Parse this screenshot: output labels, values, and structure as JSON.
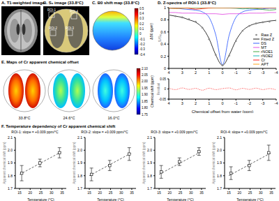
{
  "panels": {
    "A": {
      "title": "A. T1-weighted image"
    },
    "B": {
      "title": "B. S₀ image (33.8°C)",
      "rois": [
        "ROI-1",
        "ROI-2",
        "ROI-3",
        "ROI-4"
      ]
    },
    "C": {
      "title": "C. B0 shift map (33.8°C)",
      "colorbar": {
        "label": "ΔB0 (ppm)",
        "range": [
          -0.4,
          0.5
        ],
        "ticks": [
          0.5,
          0.4,
          0.3,
          0.2,
          0.1,
          0,
          -0.1,
          -0.2,
          -0.3,
          -0.4
        ]
      }
    },
    "E": {
      "title": "E. Maps of Cr apparent chemical offset",
      "maps": [
        "33.8°C",
        "24.6°C",
        "16.0°C"
      ],
      "colorbar": {
        "label": "Chemical shift (ppm)",
        "range": [
          1.75,
          2.1
        ],
        "ticks": [
          {
            "value": 2.1,
            "label": "2.10"
          },
          {
            "value": 2.05,
            "label": "2.05"
          },
          {
            "value": 2,
            "label": "2.00"
          },
          {
            "value": 1.95,
            "label": "1.95"
          },
          {
            "value": 1.9,
            "label": "1.90"
          },
          {
            "value": 1.85,
            "label": "1.85"
          },
          {
            "value": 1.8,
            "label": "1.80"
          },
          {
            "value": 1.75,
            "label": "1.75"
          }
        ]
      }
    },
    "F": {
      "title": "F. Temperature dependency of Cr apparent chemical shift"
    }
  },
  "chart_data": [
    {
      "type": "line",
      "title": "D. Z-spectra of ROI-1 (33.8°C)",
      "x": [
        4,
        3.5,
        3,
        2.5,
        2,
        1.5,
        1,
        0.5,
        0,
        -0.5,
        -1,
        -1.5,
        -2,
        -2.5,
        -3,
        -3.5,
        -4
      ],
      "xlim": [
        4,
        -4
      ],
      "xticks": [
        4,
        3,
        2,
        1,
        0,
        -1,
        -2,
        -3,
        -4
      ],
      "ylim": [
        0,
        1
      ],
      "yticks": [
        0,
        0.2,
        0.4,
        0.6,
        0.8,
        1
      ],
      "y_label": "S/S₀",
      "legend": "lower right",
      "series": [
        {
          "name": "Raw Z",
          "color": "#888888",
          "marker": "circle",
          "line_style": "none",
          "values": [
            0.88,
            0.86,
            0.84,
            0.81,
            0.77,
            0.67,
            0.48,
            0.22,
            0.05,
            0.21,
            0.45,
            0.62,
            0.7,
            0.74,
            0.76,
            0.77,
            0.79
          ]
        },
        {
          "name": "Fitted Z",
          "color": "#000000",
          "line_style": "solid",
          "values": [
            0.88,
            0.86,
            0.84,
            0.8,
            0.76,
            0.67,
            0.49,
            0.22,
            0.05,
            0.22,
            0.46,
            0.62,
            0.7,
            0.74,
            0.76,
            0.78,
            0.79
          ]
        },
        {
          "name": "DS",
          "color": "#1f4fff",
          "line_style": "solid",
          "values": [
            0.99,
            0.99,
            0.98,
            0.97,
            0.96,
            0.93,
            0.84,
            0.55,
            0.06,
            0.55,
            0.84,
            0.93,
            0.96,
            0.97,
            0.98,
            0.99,
            0.99
          ]
        },
        {
          "name": "MT",
          "color": "#e040e0",
          "line_style": "solid",
          "values": [
            0.92,
            0.92,
            0.91,
            0.91,
            0.91,
            0.9,
            0.9,
            0.9,
            0.89,
            0.9,
            0.9,
            0.9,
            0.91,
            0.91,
            0.91,
            0.92,
            0.92
          ]
        },
        {
          "name": "rNOE1",
          "color": "#2ca02c",
          "line_style": "solid",
          "values": [
            1,
            1,
            1,
            1,
            1,
            1,
            1,
            1,
            1,
            1,
            1,
            1,
            0.995,
            0.985,
            0.97,
            0.96,
            0.97
          ]
        },
        {
          "name": "rNOE2",
          "color": "#00b0b0",
          "line_style": "solid",
          "values": [
            1,
            1,
            1,
            1,
            1,
            1,
            1,
            1,
            1,
            0.995,
            0.99,
            0.98,
            0.985,
            0.995,
            1,
            1,
            1
          ]
        },
        {
          "name": "Cr",
          "color": "#ff0000",
          "line_style": "solid",
          "values": [
            1,
            1,
            1,
            0.99,
            0.975,
            0.985,
            0.995,
            1,
            1,
            1,
            1,
            1,
            1,
            1,
            1,
            1,
            1
          ]
        },
        {
          "name": "APT",
          "color": "#ff9900",
          "line_style": "solid",
          "values": [
            0.995,
            0.985,
            0.99,
            1,
            1,
            1,
            1,
            1,
            1,
            1,
            1,
            1,
            1,
            1,
            1,
            1,
            1
          ]
        }
      ]
    },
    {
      "type": "line",
      "x": [
        4,
        3.5,
        3,
        2.5,
        2,
        1.5,
        1,
        0.5,
        0,
        -0.5,
        -1,
        -1.5,
        -2,
        -2.5,
        -3,
        -3.5,
        -4
      ],
      "xlim": [
        4,
        -4
      ],
      "xticks": [
        4,
        3,
        2,
        1,
        0,
        -1,
        -2,
        -3,
        -4
      ],
      "x_label": "Chemical offset from water (ppm)",
      "y_label": "Residual",
      "ylim": [
        -0.05,
        0.05
      ],
      "yticks": [
        -0.05,
        0,
        0.05
      ],
      "color": "#ff0000",
      "line_style": "dotted",
      "values": [
        0.004,
        -0.003,
        0.005,
        -0.002,
        0.003,
        -0.006,
        0.004,
        -0.003,
        0.002,
        0.005,
        -0.004,
        0.003,
        -0.002,
        0.004,
        -0.003,
        0.002,
        -0.004
      ]
    },
    {
      "type": "scatter",
      "title": "ROI-1: slope = +0.009 ppm/°C",
      "x": [
        16.0,
        24.6,
        33.8
      ],
      "values": [
        1.82,
        1.9,
        1.98
      ],
      "errors": [
        0.06,
        0.03,
        0.04
      ],
      "color": "#000000",
      "marker": "square",
      "fit": {
        "x": [
          15,
          35
        ],
        "values": [
          1.81,
          1.99
        ],
        "line_style": "dashed"
      },
      "xlim": [
        13,
        37
      ],
      "xticks": [
        15,
        20,
        25,
        30,
        35
      ],
      "ylim": [
        1.7,
        2.1
      ],
      "yticks": [
        1.7,
        1.8,
        1.9,
        {
          "value": 2,
          "label": "2.0"
        },
        2.1
      ],
      "x_label": "Temperature (°C)",
      "y_label": "Apparent chemical shift (ppm)"
    },
    {
      "type": "scatter",
      "title": "ROI-2: slope = +0.009 ppm/°C",
      "x": [
        16.0,
        24.6,
        33.8
      ],
      "values": [
        1.81,
        1.88,
        1.97
      ],
      "errors": [
        0.05,
        0.04,
        0.05
      ],
      "color": "#000000",
      "marker": "square",
      "fit": {
        "x": [
          15,
          35
        ],
        "values": [
          1.8,
          1.98
        ],
        "line_style": "dashed"
      },
      "xlim": [
        13,
        37
      ],
      "xticks": [
        15,
        20,
        25,
        30,
        35
      ],
      "ylim": [
        1.7,
        2.1
      ],
      "yticks": [
        1.7,
        1.8,
        1.9,
        {
          "value": 2,
          "label": "2.0"
        },
        2.1
      ],
      "x_label": "Temperature (°C)",
      "y_label": "Apparent chemical shift (ppm)"
    },
    {
      "type": "scatter",
      "title": "ROI-3: slope = +0.009 ppm/°C",
      "x": [
        16.0,
        24.6,
        33.8
      ],
      "values": [
        1.83,
        1.91,
        1.99
      ],
      "errors": [
        0.05,
        0.03,
        0.03
      ],
      "color": "#000000",
      "marker": "square",
      "fit": {
        "x": [
          15,
          35
        ],
        "values": [
          1.81,
          1.99
        ],
        "line_style": "dashed"
      },
      "xlim": [
        13,
        37
      ],
      "xticks": [
        15,
        20,
        25,
        30,
        35
      ],
      "ylim": [
        1.7,
        2.1
      ],
      "yticks": [
        1.7,
        1.8,
        1.9,
        {
          "value": 2,
          "label": "2.0"
        },
        2.1
      ],
      "x_label": "Temperature (°C)",
      "y_label": "Apparent chemical shift (ppm)"
    },
    {
      "type": "scatter",
      "title": "ROI-4: slope = +0.009 ppm/°C",
      "x": [
        16.0,
        24.6,
        33.8
      ],
      "values": [
        1.82,
        1.88,
        1.98
      ],
      "errors": [
        0.05,
        0.04,
        0.06
      ],
      "color": "#000000",
      "marker": "square",
      "fit": {
        "x": [
          15,
          35
        ],
        "values": [
          1.8,
          1.98
        ],
        "line_style": "dashed"
      },
      "xlim": [
        13,
        37
      ],
      "xticks": [
        15,
        20,
        25,
        30,
        35
      ],
      "ylim": [
        1.7,
        2.1
      ],
      "yticks": [
        1.7,
        1.8,
        1.9,
        {
          "value": 2,
          "label": "2.0"
        },
        2.1
      ],
      "x_label": "Temperature (°C)",
      "y_label": "Apparent chemical shift (ppm)"
    }
  ]
}
